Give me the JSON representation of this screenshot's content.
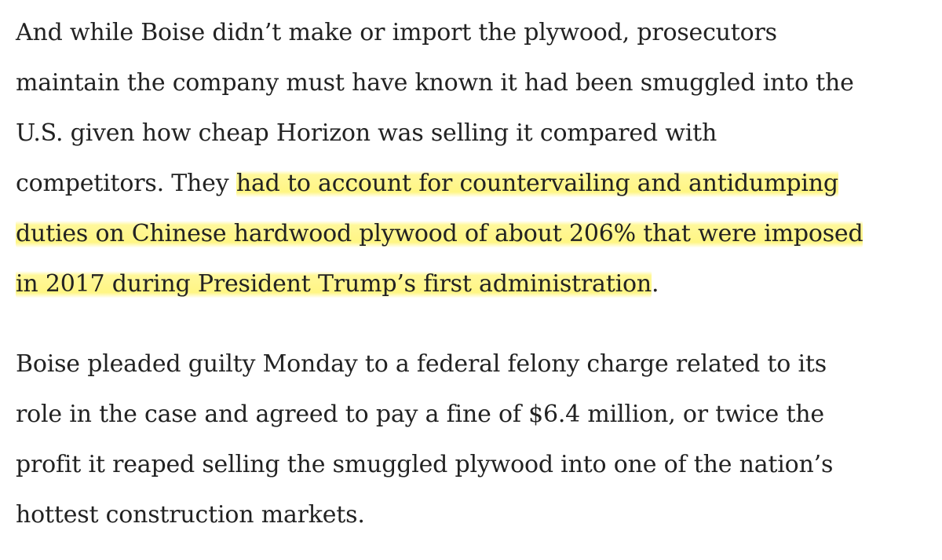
{
  "paragraphs": [
    {
      "lines": [
        {
          "text": "And while Boise didn’t make or import the plywood, prosecutors"
        },
        {
          "text": "maintain the company must have known it had been smuggled into the"
        },
        {
          "text": "U.S. given how cheap Horizon was selling it compared with"
        },
        {
          "pre": "competitors. They ",
          "highlight": "had to account for countervailing and antidumping"
        },
        {
          "highlight": "duties on Chinese hardwood plywood of about 206% that were imposed"
        },
        {
          "highlight": "in 2017 during President Trump’s first administration",
          "post": "."
        }
      ]
    },
    {
      "lines": [
        {
          "text": "Boise pleaded guilty Monday to a federal felony charge related to its"
        },
        {
          "text": "role in the case and agreed to pay a fine of $6.4 million, or twice the"
        },
        {
          "text": "profit it reaped selling the smuggled plywood into one of the nation’s"
        },
        {
          "text": "hottest construction markets."
        }
      ]
    }
  ],
  "highlight_color": "#fff36e"
}
